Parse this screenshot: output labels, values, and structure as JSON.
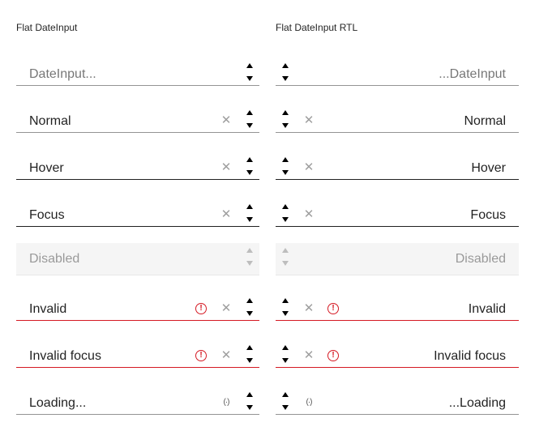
{
  "columns": {
    "ltr": {
      "title": "Flat DateInput"
    },
    "rtl": {
      "title": "Flat DateInput RTL"
    }
  },
  "rows": [
    {
      "state": "placeholder",
      "ltr_text": "DateInput...",
      "rtl_text": "...DateInput"
    },
    {
      "state": "normal",
      "ltr_text": "Normal",
      "rtl_text": "Normal"
    },
    {
      "state": "hover",
      "ltr_text": "Hover",
      "rtl_text": "Hover"
    },
    {
      "state": "focus",
      "ltr_text": "Focus",
      "rtl_text": "Focus"
    },
    {
      "state": "disabled",
      "ltr_text": "Disabled",
      "rtl_text": "Disabled"
    },
    {
      "state": "invalid",
      "ltr_text": "Invalid",
      "rtl_text": "Invalid"
    },
    {
      "state": "invalid-focus",
      "ltr_text": "Invalid focus",
      "rtl_text": "Invalid focus"
    },
    {
      "state": "loading",
      "ltr_text": "Loading...",
      "rtl_text": "...Loading"
    }
  ],
  "icons": {
    "spin_up": "triangle-up-icon",
    "spin_down": "triangle-down-icon",
    "clear": "close-icon",
    "invalid": "exclamation-circle-icon",
    "loading": "loading-icon"
  },
  "colors": {
    "error": "#d51923",
    "clear_icon": "#9e9e9e",
    "disabled_bg": "#f5f5f5"
  }
}
